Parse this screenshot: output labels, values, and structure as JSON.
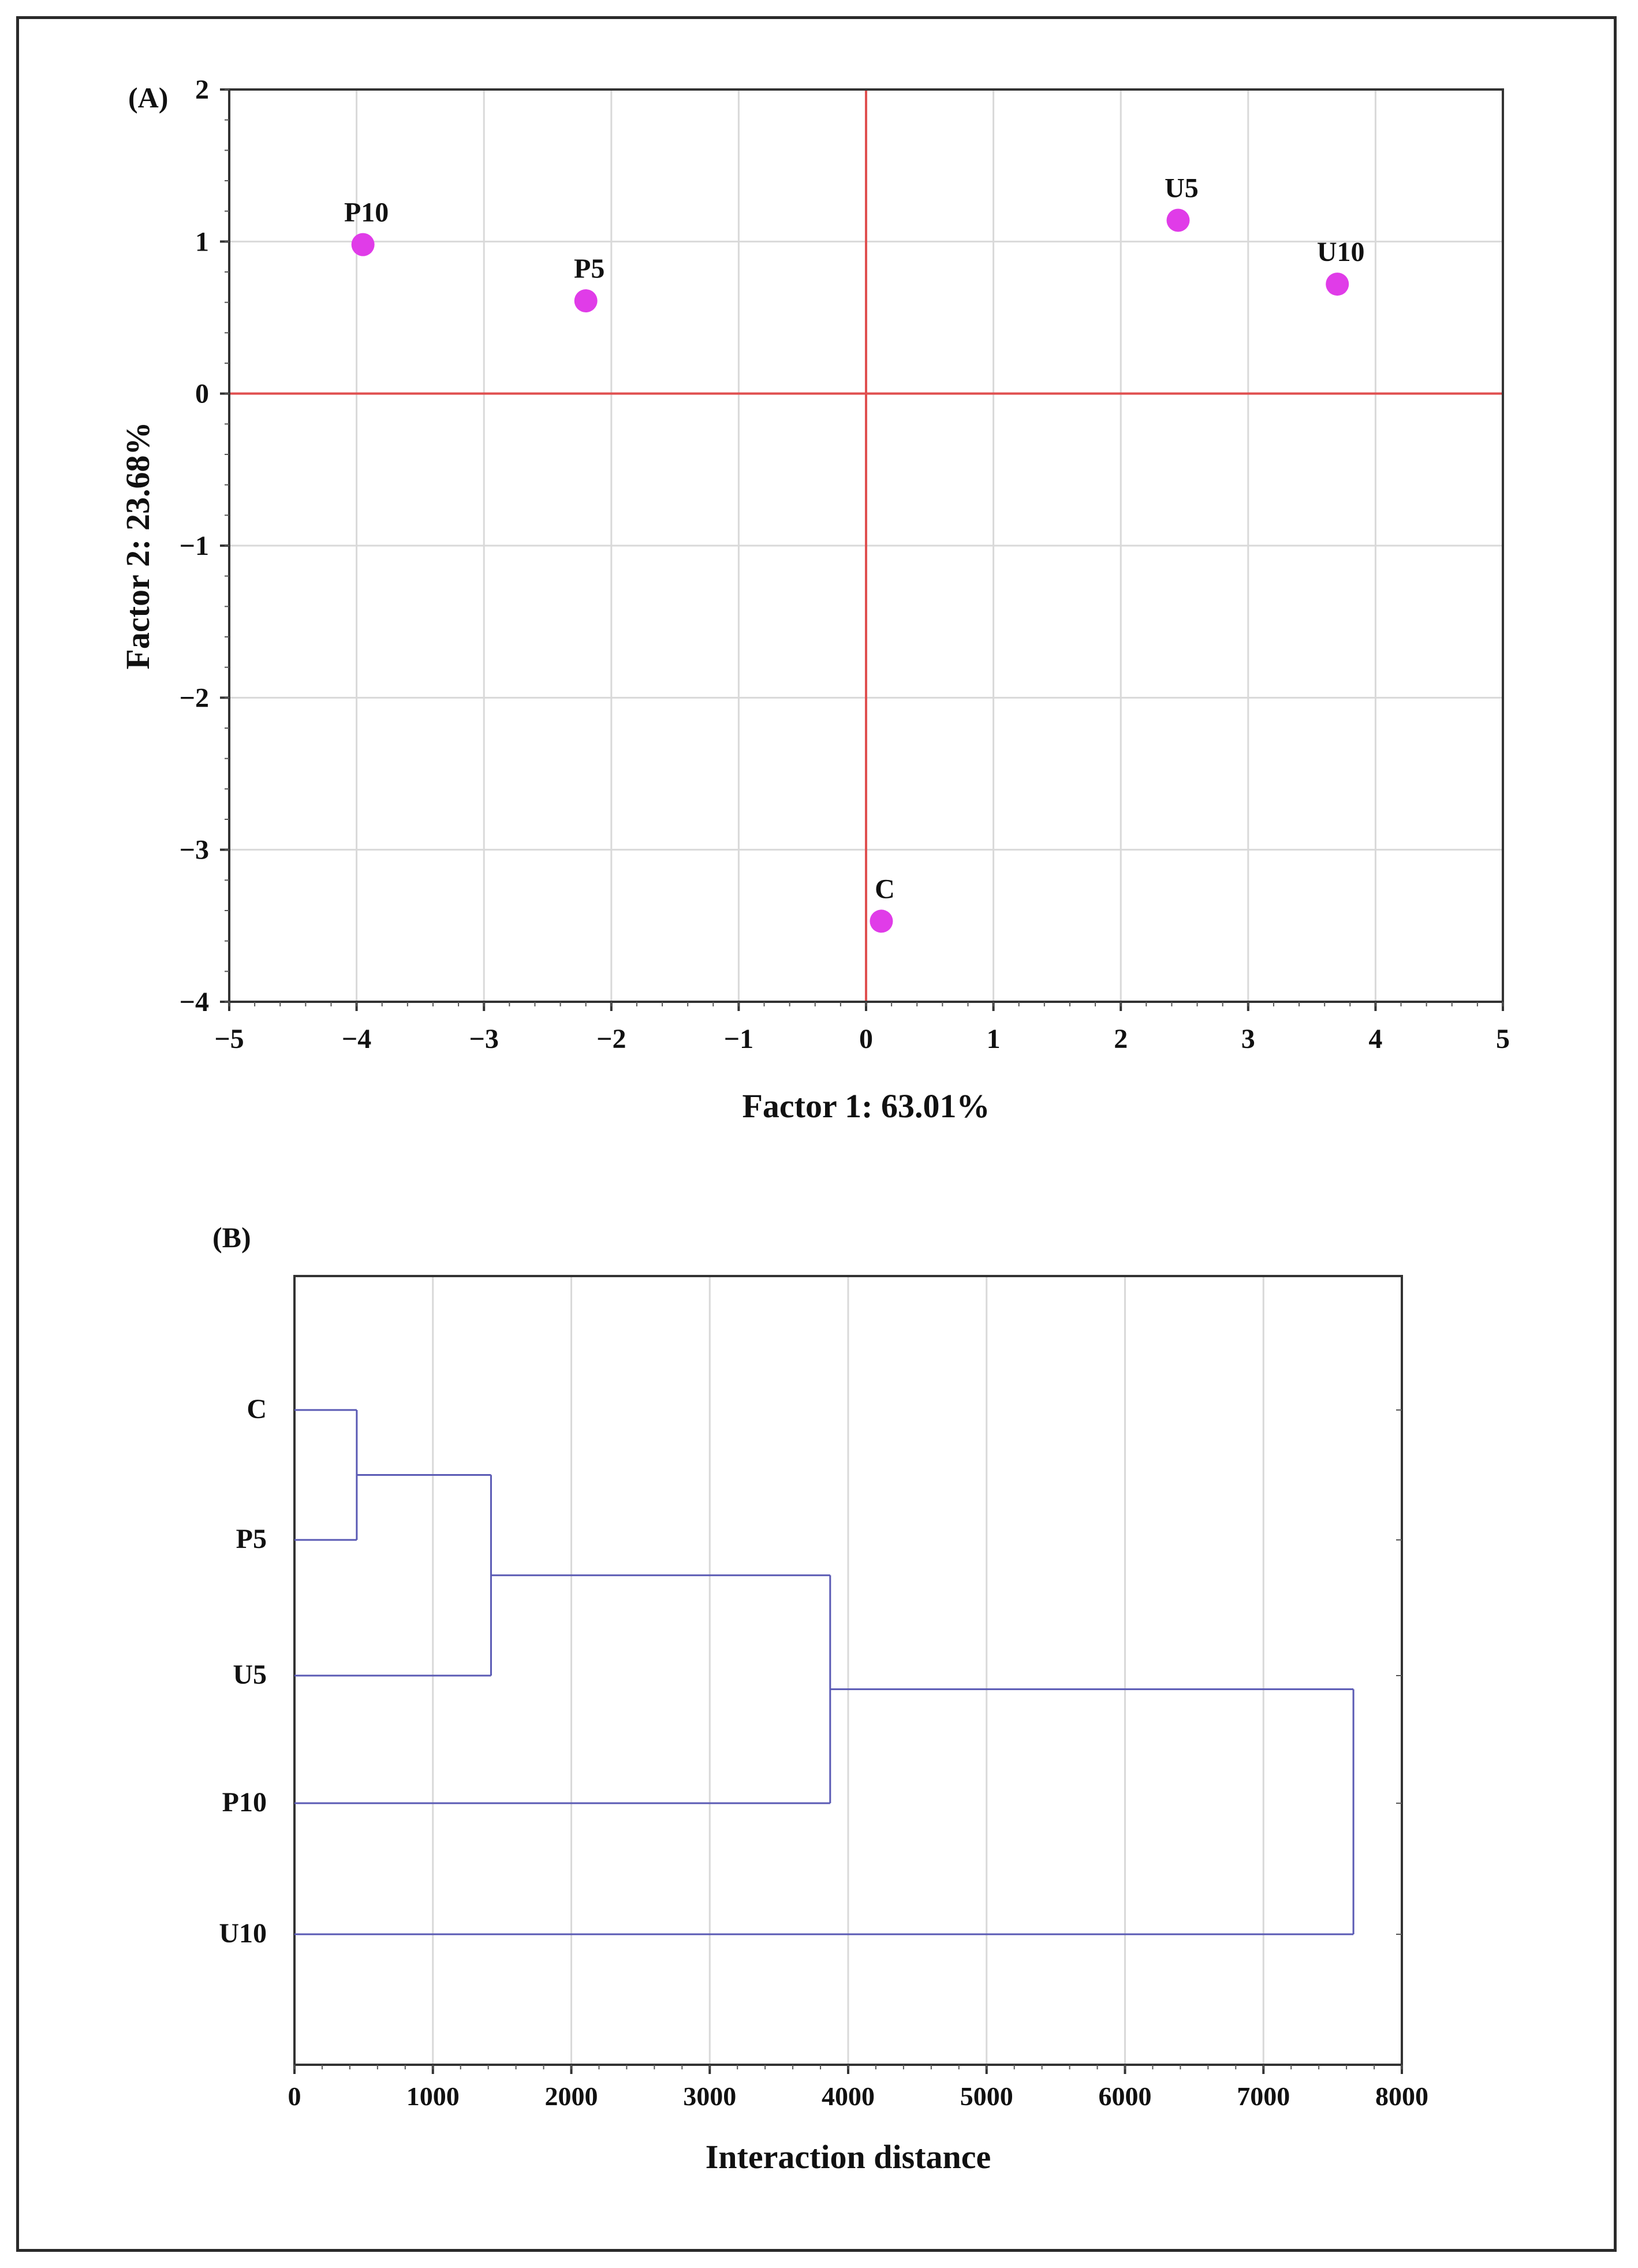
{
  "figure": {
    "panel_a_label": "(A)",
    "panel_b_label": "(B)"
  },
  "colors": {
    "point": "#e03ce8",
    "reference_line": "#e05050",
    "dendrogram": "#5a5ab4",
    "grid": "#d9d9d9",
    "frame": "#2a2a2a"
  },
  "chart_data": [
    {
      "type": "scatter",
      "title": "",
      "xlabel": "Factor 1: 63.01%",
      "ylabel": "Factor 2: 23.68%",
      "xlim": [
        -5,
        5
      ],
      "ylim": [
        -4,
        2
      ],
      "xticks": [
        -5,
        -4,
        -3,
        -2,
        -1,
        0,
        1,
        2,
        3,
        4,
        5
      ],
      "yticks": [
        2,
        1,
        0,
        -1,
        -2,
        -3,
        -4
      ],
      "xtick_labels": [
        "−5",
        "−4",
        "−3",
        "−2",
        "−1",
        "0",
        "1",
        "2",
        "3",
        "4",
        "5"
      ],
      "ytick_labels": [
        "2",
        "1",
        "0",
        "−1",
        "−2",
        "−3",
        "−4"
      ],
      "grid": true,
      "reference_lines": {
        "x": 0,
        "y": 0
      },
      "points": [
        {
          "label": "P10",
          "x": -3.95,
          "y": 0.98
        },
        {
          "label": "P5",
          "x": -2.2,
          "y": 0.61
        },
        {
          "label": "U5",
          "x": 2.45,
          "y": 1.14
        },
        {
          "label": "U10",
          "x": 3.7,
          "y": 0.72
        },
        {
          "label": "C",
          "x": 0.12,
          "y": -3.47
        }
      ]
    },
    {
      "type": "dendrogram",
      "title": "",
      "xlabel": "Interaction distance",
      "xlim": [
        0,
        8000
      ],
      "xticks": [
        0,
        1000,
        2000,
        3000,
        4000,
        5000,
        6000,
        7000,
        8000
      ],
      "xtick_labels": [
        "0",
        "1000",
        "2000",
        "3000",
        "4000",
        "5000",
        "6000",
        "7000",
        "8000"
      ],
      "grid": true,
      "leaves": [
        "C",
        "P5",
        "U5",
        "P10",
        "U10"
      ],
      "merges": [
        {
          "members": [
            "C",
            "P5"
          ],
          "distance": 450
        },
        {
          "members": [
            "C",
            "P5",
            "U5"
          ],
          "distance": 1420
        },
        {
          "members": [
            "C",
            "P5",
            "U5",
            "P10"
          ],
          "distance": 3870
        },
        {
          "members": [
            "C",
            "P5",
            "U5",
            "P10",
            "U10"
          ],
          "distance": 7650
        }
      ]
    }
  ]
}
